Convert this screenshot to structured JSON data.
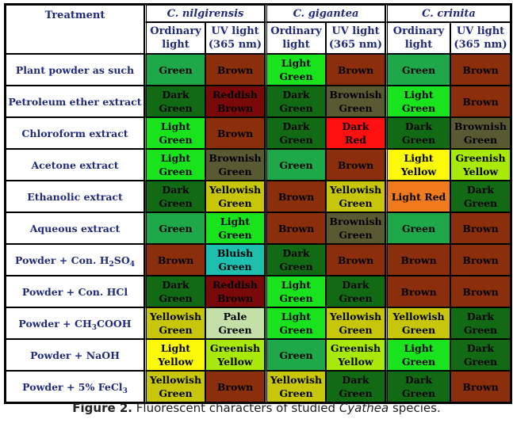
{
  "table": {
    "treatment_header": "Treatment",
    "species": [
      "C. nilgirensis",
      "C. gigantea",
      "C. crinita"
    ],
    "sub_headers": [
      [
        "Ordinary",
        "light"
      ],
      [
        "UV light",
        "(365 nm)"
      ]
    ],
    "rows": [
      {
        "label": "Plant powder as such",
        "cells": [
          {
            "text": [
              "Green"
            ],
            "bg": "#1fa84a"
          },
          {
            "text": [
              "Brown"
            ],
            "bg": "#8b2e0c"
          },
          {
            "text": [
              "Light",
              "Green"
            ],
            "bg": "#19e31d"
          },
          {
            "text": [
              "Brown"
            ],
            "bg": "#8b2e0c"
          },
          {
            "text": [
              "Green"
            ],
            "bg": "#1fa84a"
          },
          {
            "text": [
              "Brown"
            ],
            "bg": "#8b2e0c"
          }
        ]
      },
      {
        "label": "Petroleum ether extract",
        "cells": [
          {
            "text": [
              "Dark",
              "Green"
            ],
            "bg": "#136a14"
          },
          {
            "text": [
              "Reddish",
              "Brown"
            ],
            "bg": "#7a0a0a"
          },
          {
            "text": [
              "Dark",
              "Green"
            ],
            "bg": "#136a14"
          },
          {
            "text": [
              "Brownish",
              "Green"
            ],
            "bg": "#595a32"
          },
          {
            "text": [
              "Light",
              "Green"
            ],
            "bg": "#19e31d"
          },
          {
            "text": [
              "Brown"
            ],
            "bg": "#8b2e0c"
          }
        ]
      },
      {
        "label": "Chloroform extract",
        "cells": [
          {
            "text": [
              "Light",
              "Green"
            ],
            "bg": "#19e31d"
          },
          {
            "text": [
              "Brown"
            ],
            "bg": "#8b2e0c"
          },
          {
            "text": [
              "Dark",
              "Green"
            ],
            "bg": "#136a14"
          },
          {
            "text": [
              "Dark",
              "Red"
            ],
            "bg": "#ff1010"
          },
          {
            "text": [
              "Dark",
              "Green"
            ],
            "bg": "#136a14"
          },
          {
            "text": [
              "Brownish",
              "Green"
            ],
            "bg": "#595a32"
          }
        ]
      },
      {
        "label": "Acetone extract",
        "cells": [
          {
            "text": [
              "Light",
              "Green"
            ],
            "bg": "#19e31d"
          },
          {
            "text": [
              "Brownish",
              "Green"
            ],
            "bg": "#595a32"
          },
          {
            "text": [
              "Green"
            ],
            "bg": "#1fa84a"
          },
          {
            "text": [
              "Brown"
            ],
            "bg": "#8b2e0c"
          },
          {
            "text": [
              "Light",
              "Yellow"
            ],
            "bg": "#fbf80a"
          },
          {
            "text": [
              "Greenish",
              "Yellow"
            ],
            "bg": "#a8e80a"
          }
        ]
      },
      {
        "label": "Ethanolic extract",
        "cells": [
          {
            "text": [
              "Dark",
              "Green"
            ],
            "bg": "#136a14"
          },
          {
            "text": [
              "Yellowish",
              "Green"
            ],
            "bg": "#c8c60a"
          },
          {
            "text": [
              "Brown"
            ],
            "bg": "#8b2e0c"
          },
          {
            "text": [
              "Yellowish",
              "Green"
            ],
            "bg": "#c8c60a"
          },
          {
            "text": [
              "Light Red"
            ],
            "bg": "#f07a1e"
          },
          {
            "text": [
              "Dark",
              "Green"
            ],
            "bg": "#136a14"
          }
        ]
      },
      {
        "label": "Aqueous extract",
        "cells": [
          {
            "text": [
              "Green"
            ],
            "bg": "#1fa84a"
          },
          {
            "text": [
              "Light",
              "Green"
            ],
            "bg": "#19e31d"
          },
          {
            "text": [
              "Brown"
            ],
            "bg": "#8b2e0c"
          },
          {
            "text": [
              "Brownish",
              "Green"
            ],
            "bg": "#595a32"
          },
          {
            "text": [
              "Green"
            ],
            "bg": "#1fa84a"
          },
          {
            "text": [
              "Brown"
            ],
            "bg": "#8b2e0c"
          }
        ]
      },
      {
        "label_parts": [
          "Powder + Con. H",
          "2",
          "SO",
          "4"
        ],
        "cells": [
          {
            "text": [
              "Brown"
            ],
            "bg": "#8b2e0c"
          },
          {
            "text": [
              "Bluish",
              "Green"
            ],
            "bg": "#1fbfb0"
          },
          {
            "text": [
              "Dark",
              "Green"
            ],
            "bg": "#136a14"
          },
          {
            "text": [
              "Brown"
            ],
            "bg": "#8b2e0c"
          },
          {
            "text": [
              "Brown"
            ],
            "bg": "#8b2e0c"
          },
          {
            "text": [
              "Brown"
            ],
            "bg": "#8b2e0c"
          }
        ]
      },
      {
        "label": "Powder + Con. HCl",
        "cells": [
          {
            "text": [
              "Dark",
              "Green"
            ],
            "bg": "#136a14"
          },
          {
            "text": [
              "Reddish",
              "Brown"
            ],
            "bg": "#7a0a0a"
          },
          {
            "text": [
              "Light",
              "Green"
            ],
            "bg": "#19e31d"
          },
          {
            "text": [
              "Dark",
              "Green"
            ],
            "bg": "#136a14"
          },
          {
            "text": [
              "Brown"
            ],
            "bg": "#8b2e0c"
          },
          {
            "text": [
              "Brown"
            ],
            "bg": "#8b2e0c"
          }
        ]
      },
      {
        "label_parts": [
          "Powder + CH",
          "3",
          "COOH",
          ""
        ],
        "cells": [
          {
            "text": [
              "Yellowish",
              "Green"
            ],
            "bg": "#c8c60a"
          },
          {
            "text": [
              "Pale",
              "Green"
            ],
            "bg": "#c4e0a8"
          },
          {
            "text": [
              "Light",
              "Green"
            ],
            "bg": "#19e31d"
          },
          {
            "text": [
              "Yellowish",
              "Green"
            ],
            "bg": "#c8c60a"
          },
          {
            "text": [
              "Yellowish",
              "Green"
            ],
            "bg": "#c8c60a"
          },
          {
            "text": [
              "Dark",
              "Green"
            ],
            "bg": "#136a14"
          }
        ]
      },
      {
        "label": "Powder + NaOH",
        "cells": [
          {
            "text": [
              "Light",
              "Yellow"
            ],
            "bg": "#fbf80a"
          },
          {
            "text": [
              "Greenish",
              "Yellow"
            ],
            "bg": "#a8e80a"
          },
          {
            "text": [
              "Green"
            ],
            "bg": "#1fa84a"
          },
          {
            "text": [
              "Greenish",
              "Yellow"
            ],
            "bg": "#a8e80a"
          },
          {
            "text": [
              "Light",
              "Green"
            ],
            "bg": "#19e31d"
          },
          {
            "text": [
              "Dark",
              "Green"
            ],
            "bg": "#136a14"
          }
        ]
      },
      {
        "label_parts": [
          "Powder + 5% FeCl",
          "3",
          "",
          ""
        ],
        "cells": [
          {
            "text": [
              "Yellowish",
              "Green"
            ],
            "bg": "#c8c60a"
          },
          {
            "text": [
              "Brown"
            ],
            "bg": "#8b2e0c"
          },
          {
            "text": [
              "Yellowish",
              "Green"
            ],
            "bg": "#c8c60a"
          },
          {
            "text": [
              "Dark",
              "Green"
            ],
            "bg": "#136a14"
          },
          {
            "text": [
              "Dark",
              "Green"
            ],
            "bg": "#136a14"
          },
          {
            "text": [
              "Brown"
            ],
            "bg": "#8b2e0c"
          }
        ]
      }
    ]
  },
  "caption": {
    "prefix": "Figure 2.",
    "text": " Fluorescent characters of studied ",
    "genus": "Cyathea",
    "suffix": " species."
  }
}
